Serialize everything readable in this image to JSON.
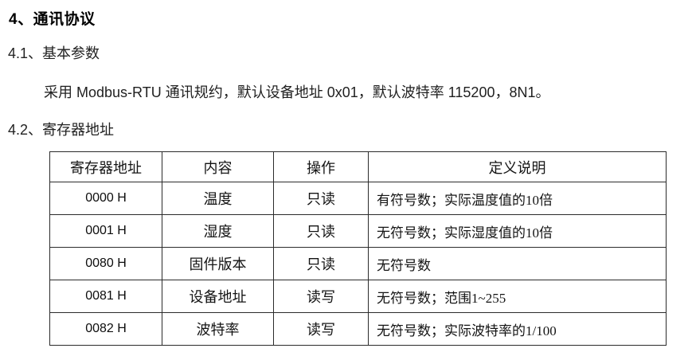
{
  "page": {
    "background": "#ffffff",
    "text_color": "#1a1a1a",
    "border_color": "#2b2b2b"
  },
  "headings": {
    "section_title": "4、通讯协议",
    "sub_basic_params": "4.1、基本参数",
    "sub_register_addr": "4.2、寄存器地址"
  },
  "paragraph": {
    "protocol_text": "采用 Modbus-RTU 通讯规约，默认设备地址 0x01，默认波特率 115200，8N1。"
  },
  "table": {
    "headers": [
      "寄存器地址",
      "内容",
      "操作",
      "定义说明"
    ],
    "rows": [
      [
        "0000 H",
        "温度",
        "只读",
        "有符号数；实际温度值的10倍"
      ],
      [
        "0001 H",
        "湿度",
        "只读",
        "无符号数；实际湿度值的10倍"
      ],
      [
        "0080 H",
        "固件版本",
        "只读",
        "无符号数"
      ],
      [
        "0081 H",
        "设备地址",
        "读写",
        "无符号数；范围1~255"
      ],
      [
        "0082 H",
        "波特率",
        "读写",
        "无符号数；实际波特率的1/100"
      ]
    ]
  }
}
